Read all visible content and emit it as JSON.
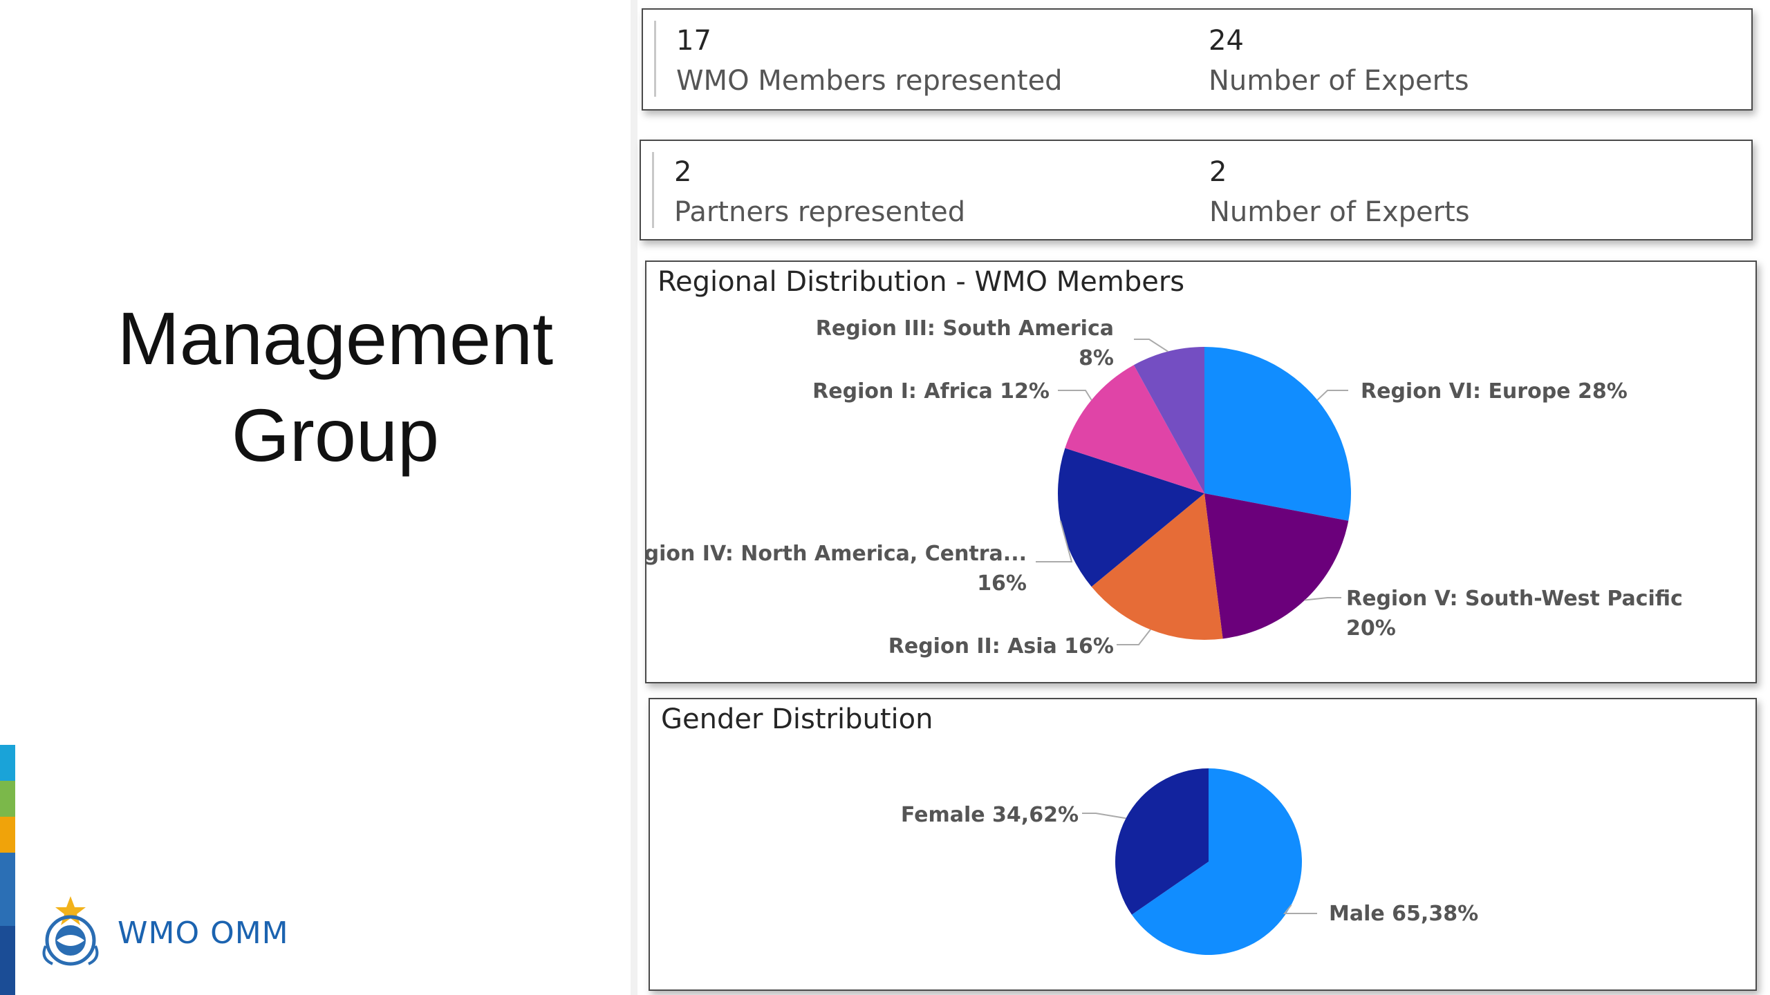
{
  "page_title": [
    "Management",
    "Group"
  ],
  "logo": {
    "text": "WMO OMM",
    "icon": "wmo-emblem-icon"
  },
  "brand_strip_colors": [
    "#1aa3d8",
    "#7bb84a",
    "#f0a30a",
    "#2b6fb5",
    "#1b4d96"
  ],
  "kpi_cards": [
    {
      "value_1": "17",
      "label_1": "WMO Members represented",
      "value_2": "24",
      "label_2": "Number of Experts"
    },
    {
      "value_1": "2",
      "label_1": "Partners represented",
      "value_2": "2",
      "label_2": "Number of Experts"
    }
  ],
  "chart_data": [
    {
      "type": "pie",
      "title": "Regional Distribution - WMO Members",
      "slices": [
        {
          "label": [
            "Region VI: Europe 28%"
          ],
          "value": 28,
          "color": "#118dff"
        },
        {
          "label": [
            "Region V: South-West Pacific",
            "20%"
          ],
          "value": 20,
          "color": "#6b007b"
        },
        {
          "label": [
            "Region II: Asia 16%"
          ],
          "value": 16,
          "color": "#e66c37"
        },
        {
          "label": [
            "Region IV: North America, Centra...",
            "16%"
          ],
          "value": 16,
          "color": "#12239e"
        },
        {
          "label": [
            "Region I: Africa 12%"
          ],
          "value": 12,
          "color": "#e044a7"
        },
        {
          "label": [
            "Region III: South America",
            "8%"
          ],
          "value": 8,
          "color": "#744ec2"
        }
      ]
    },
    {
      "type": "pie",
      "title": "Gender Distribution",
      "slices": [
        {
          "label": [
            "Male 65,38%"
          ],
          "value": 65.38,
          "color": "#118dff"
        },
        {
          "label": [
            "Female 34,62%"
          ],
          "value": 34.62,
          "color": "#12239e"
        }
      ]
    }
  ]
}
